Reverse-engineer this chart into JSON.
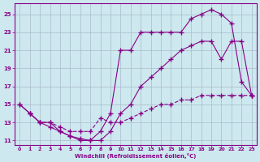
{
  "xlabel": "Windchill (Refroidissement éolien,°C)",
  "background_color": "#cde8ee",
  "line_color": "#880088",
  "grid_color": "#aabbcc",
  "xlim": [
    -0.5,
    23.5
  ],
  "ylim": [
    10.5,
    26.2
  ],
  "xticks": [
    0,
    1,
    2,
    3,
    4,
    5,
    6,
    7,
    8,
    9,
    10,
    11,
    12,
    13,
    14,
    15,
    16,
    17,
    18,
    19,
    20,
    21,
    22,
    23
  ],
  "yticks": [
    11,
    13,
    15,
    17,
    19,
    21,
    23,
    25
  ],
  "line1_x": [
    0,
    1,
    2,
    3,
    4,
    5,
    6,
    7,
    8,
    9,
    10,
    11,
    12,
    13,
    14,
    15,
    16,
    17,
    18,
    19,
    20,
    21,
    22,
    23
  ],
  "line1_y": [
    15,
    14,
    13,
    12.5,
    12,
    11.5,
    11.2,
    11,
    12,
    14,
    21,
    21,
    23,
    23,
    23,
    23,
    23,
    24.5,
    25,
    25.5,
    25,
    24,
    17.5,
    16
  ],
  "line2_x": [
    0,
    1,
    2,
    3,
    4,
    5,
    6,
    7,
    8,
    9,
    10,
    11,
    12,
    13,
    14,
    15,
    16,
    17,
    18,
    19,
    20,
    21,
    22,
    23
  ],
  "line2_y": [
    15,
    14,
    13,
    13,
    12,
    11.5,
    11,
    11,
    11,
    12,
    14,
    15,
    17,
    18,
    19,
    20,
    21,
    21.5,
    22,
    22,
    20,
    22,
    22,
    16
  ],
  "line3_x": [
    1,
    2,
    3,
    4,
    5,
    6,
    7,
    8,
    9,
    10,
    11,
    12,
    13,
    14,
    15,
    16,
    17,
    18,
    19,
    20,
    21,
    22,
    23
  ],
  "line3_y": [
    14,
    13,
    13,
    12.5,
    12,
    12,
    12,
    13.5,
    13,
    13,
    13.5,
    14,
    14.5,
    15,
    15,
    15.5,
    15.5,
    16,
    16,
    16,
    16,
    16,
    16
  ]
}
